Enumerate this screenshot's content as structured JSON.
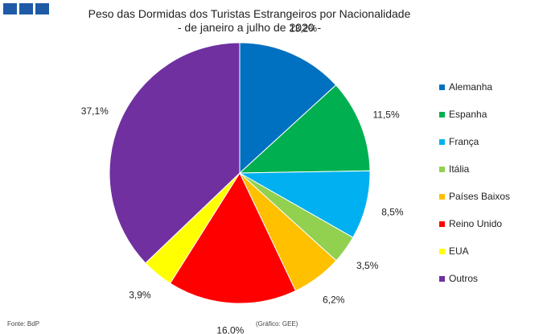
{
  "header": {
    "title_line1": "Peso das Dormidas dos Turistas Estrangeiros por Nacionalidade",
    "title_line2": "- de janeiro a julho de 2020 -"
  },
  "chart_data": {
    "type": "pie",
    "title": "Peso das Dormidas dos Turistas Estrangeiros por Nacionalidade",
    "subtitle": "- de janeiro a julho de 2020 -",
    "legend_position": "right",
    "start_angle": "12 o'clock, clockwise",
    "slices": [
      {
        "name": "Alemanha",
        "value": 13.2,
        "label": "13,2%",
        "color": "#0070c0"
      },
      {
        "name": "Espanha",
        "value": 11.5,
        "label": "11,5%",
        "color": "#00b050"
      },
      {
        "name": "França",
        "value": 8.5,
        "label": "8,5%",
        "color": "#00b0f0"
      },
      {
        "name": "Itália",
        "value": 3.5,
        "label": "3,5%",
        "color": "#92d050"
      },
      {
        "name": "Países Baixos",
        "value": 6.2,
        "label": "6,2%",
        "color": "#ffc000"
      },
      {
        "name": "Reino Unido",
        "value": 16.0,
        "label": "16,0%",
        "color": "#ff0000"
      },
      {
        "name": "EUA",
        "value": 3.9,
        "label": "3,9%",
        "color": "#ffff00"
      },
      {
        "name": "Outros",
        "value": 37.1,
        "label": "37,1%",
        "color": "#7030a0"
      }
    ]
  },
  "footer": {
    "source": "Fonte: BdP",
    "credit": "(Gráfico: GEE)"
  },
  "logo": {
    "icon": "brand-logo-icon",
    "color": "#1f5aa6"
  }
}
